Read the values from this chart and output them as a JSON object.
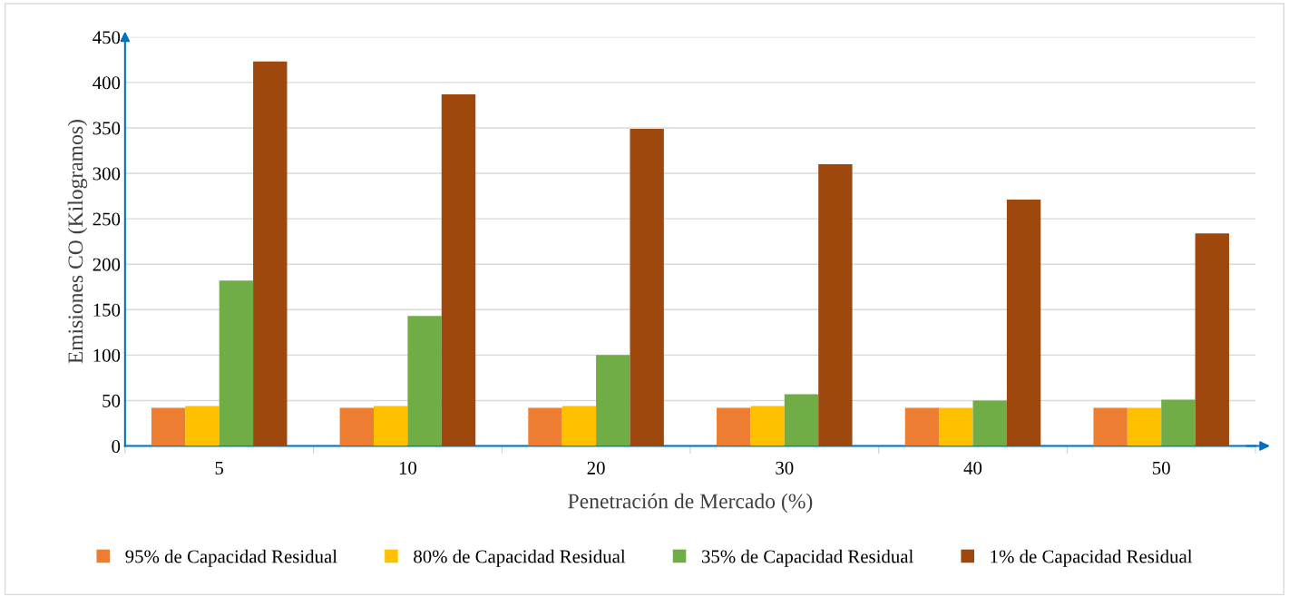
{
  "chart_data": {
    "type": "bar",
    "xlabel": "Penetración de Mercado (%)",
    "ylabel": "Emisiones CO (Kilogramos)",
    "categories": [
      "5",
      "10",
      "20",
      "30",
      "40",
      "50"
    ],
    "series": [
      {
        "name": "95% de Capacidad Residual",
        "color": "#ed7d31",
        "values": [
          42,
          42,
          42,
          42,
          42,
          42
        ]
      },
      {
        "name": "80% de Capacidad Residual",
        "color": "#ffc000",
        "values": [
          44,
          44,
          44,
          44,
          42,
          42
        ]
      },
      {
        "name": "35% de Capacidad Residual",
        "color": "#70ad47",
        "values": [
          182,
          143,
          100,
          57,
          50,
          51
        ]
      },
      {
        "name": "1% de Capacidad Residual",
        "color": "#9e480e",
        "values": [
          423,
          387,
          349,
          310,
          271,
          234
        ]
      }
    ],
    "ylim": [
      0,
      450
    ],
    "yticks": [
      0,
      50,
      100,
      150,
      200,
      250,
      300,
      350,
      400,
      450
    ],
    "grid": "y",
    "legend": "bottom"
  }
}
